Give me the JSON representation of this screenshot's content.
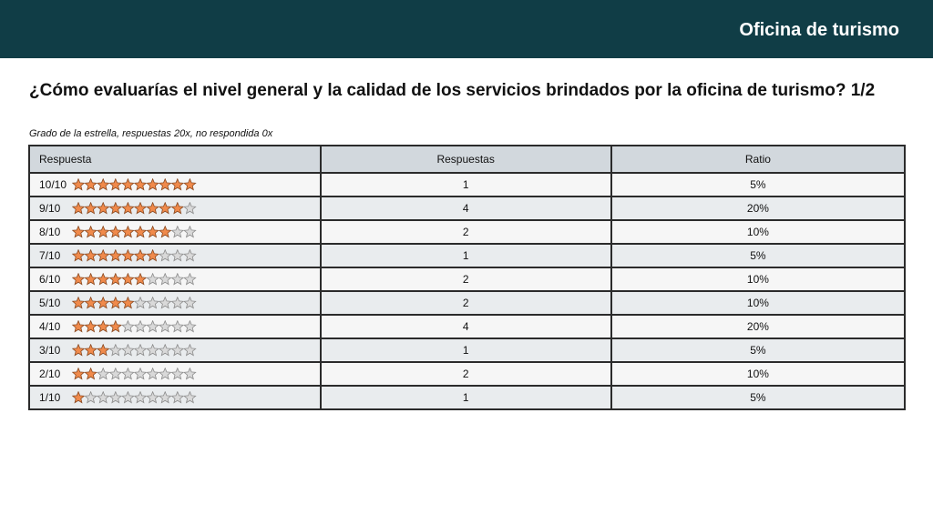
{
  "header": {
    "title": "Oficina de turismo"
  },
  "question": "¿Cómo evaluarías el nivel general y la calidad de los servicios brindados por la oficina de turismo? 1/2",
  "subtitle": "Grado de la estrella, respuestas 20x, no respondida 0x",
  "colors": {
    "header_bg": "#103d46",
    "star_filled": "#f08a4b",
    "star_empty": "#d9d9d9"
  },
  "table": {
    "headers": [
      "Respuesta",
      "Respuestas",
      "Ratio"
    ],
    "max_stars": 10,
    "rows": [
      {
        "label": "10/10",
        "stars": 10,
        "count": "1",
        "ratio": "5%"
      },
      {
        "label": "9/10",
        "stars": 9,
        "count": "4",
        "ratio": "20%"
      },
      {
        "label": "8/10",
        "stars": 8,
        "count": "2",
        "ratio": "10%"
      },
      {
        "label": "7/10",
        "stars": 7,
        "count": "1",
        "ratio": "5%"
      },
      {
        "label": "6/10",
        "stars": 6,
        "count": "2",
        "ratio": "10%"
      },
      {
        "label": "5/10",
        "stars": 5,
        "count": "2",
        "ratio": "10%"
      },
      {
        "label": "4/10",
        "stars": 4,
        "count": "4",
        "ratio": "20%"
      },
      {
        "label": "3/10",
        "stars": 3,
        "count": "1",
        "ratio": "5%"
      },
      {
        "label": "2/10",
        "stars": 2,
        "count": "2",
        "ratio": "10%"
      },
      {
        "label": "1/10",
        "stars": 1,
        "count": "1",
        "ratio": "5%"
      }
    ]
  }
}
